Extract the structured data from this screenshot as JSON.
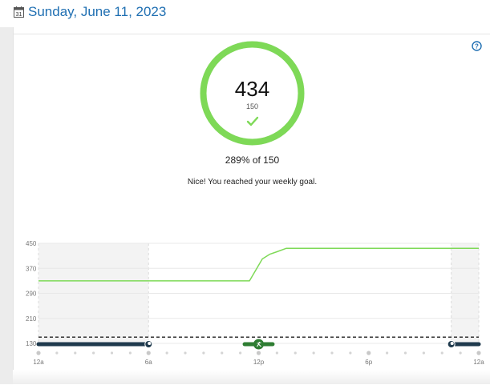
{
  "header": {
    "date": "Sunday, June 11, 2023",
    "calendar_day": "31"
  },
  "summary": {
    "value": "434",
    "goal": "150",
    "percent_text": "289% of 150",
    "message": "Nice! You reached your weekly goal.",
    "progress_fraction": 1.0,
    "ring_color": "#7ed957"
  },
  "icons": {
    "help": "help-circle-icon",
    "check": "check-icon",
    "calendar": "calendar-icon",
    "activity": "running-person-icon",
    "sleep": "moon-icon"
  },
  "chart_data": {
    "type": "line",
    "y_ticks": [
      450,
      370,
      290,
      210,
      130
    ],
    "ylim": [
      130,
      450
    ],
    "x_ticks": [
      "12a",
      "6a",
      "12p",
      "6p",
      "12a"
    ],
    "xlim": [
      0,
      24
    ],
    "goal_line": 150,
    "series": [
      {
        "values": [
          [
            0,
            330
          ],
          [
            11.5,
            330
          ],
          [
            12.2,
            400
          ],
          [
            12.6,
            415
          ],
          [
            13.0,
            423
          ],
          [
            13.5,
            434
          ],
          [
            24,
            434
          ]
        ]
      }
    ],
    "line_color": "#7ed957",
    "sleep_periods": [
      [
        0,
        6
      ],
      [
        22.5,
        24
      ]
    ],
    "sleep_color": "#1f3a4d",
    "activity_periods": [
      [
        11.5,
        12.5
      ]
    ],
    "activity_color": "#2e7d32"
  }
}
